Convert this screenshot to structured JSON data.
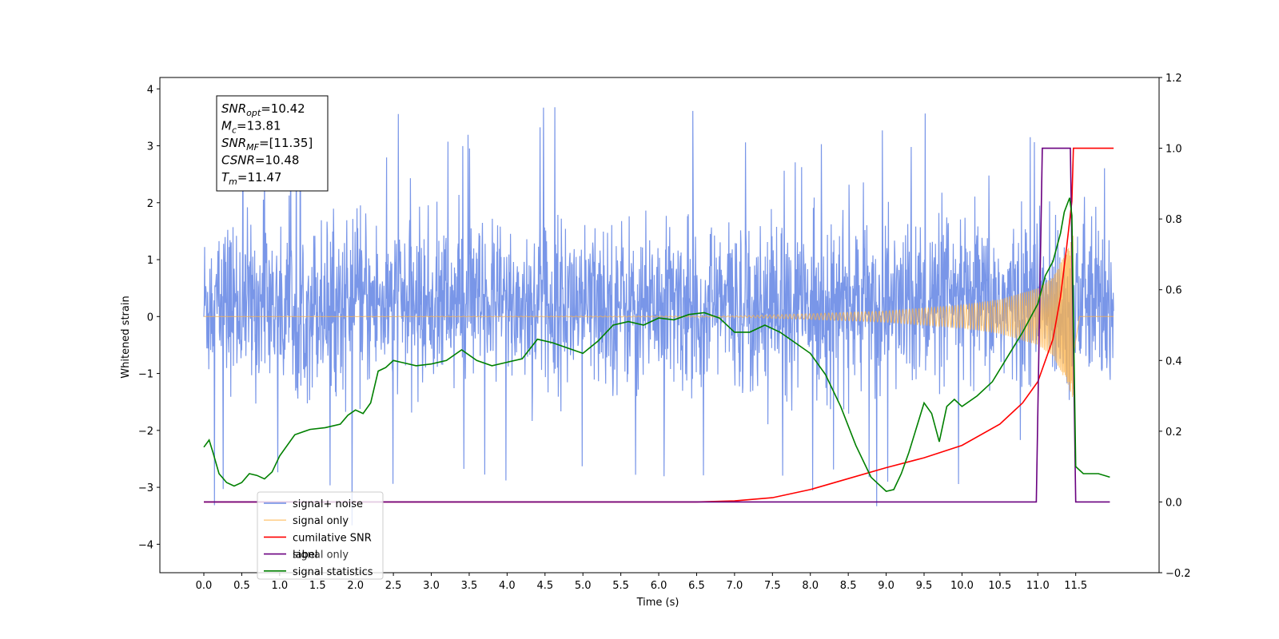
{
  "chart_data": {
    "type": "line",
    "xlabel": "Time (s)",
    "ylabel_left": "Whitened strain",
    "ylabel_right": "",
    "xlim": [
      -0.58,
      12.6
    ],
    "ylim_left": [
      -4.5,
      4.2
    ],
    "ylim_right": [
      -0.2,
      1.2
    ],
    "x_ticks": [
      0.0,
      0.5,
      1.0,
      1.5,
      2.0,
      2.5,
      3.0,
      3.5,
      4.0,
      4.5,
      5.0,
      5.5,
      6.0,
      6.5,
      7.0,
      7.5,
      8.0,
      8.5,
      9.0,
      9.5,
      10.0,
      10.5,
      11.0,
      11.5
    ],
    "x_tick_labels": [
      "0.0",
      "0.5",
      "1.0",
      "1.5",
      "2.0",
      "2.5",
      "3.0",
      "3.5",
      "4.0",
      "4.5",
      "5.0",
      "5.5",
      "6.0",
      "6.5",
      "7.0",
      "7.5",
      "8.0",
      "8.5",
      "9.0",
      "9.5",
      "10.0",
      "10.5",
      "11.0",
      "11.5"
    ],
    "y_left_ticks": [
      -4,
      -3,
      -2,
      -1,
      0,
      1,
      2,
      3,
      4
    ],
    "y_left_tick_labels": [
      "−4",
      "−3",
      "−2",
      "−1",
      "0",
      "1",
      "2",
      "3",
      "4"
    ],
    "y_right_ticks": [
      -0.2,
      0.0,
      0.2,
      0.4,
      0.6,
      0.8,
      1.0,
      1.2
    ],
    "y_right_tick_labels": [
      "−0.2",
      "0.0",
      "0.2",
      "0.4",
      "0.6",
      "0.8",
      "1.0",
      "1.2"
    ],
    "annotation": {
      "lines": [
        {
          "base": "SNR",
          "sub": "opt",
          "value": "=10.42"
        },
        {
          "base": "M",
          "sub": "c",
          "value": "=13.81"
        },
        {
          "base": "SNR",
          "sub": "MF",
          "value": "=[11.35]"
        },
        {
          "base": "CSNR",
          "sub": "",
          "value": "=10.48"
        },
        {
          "base": "T",
          "sub": "m",
          "value": "=11.47"
        }
      ]
    },
    "legend": {
      "location": "lower-left",
      "hidden_label": "signal only"
    },
    "series": [
      {
        "name": "signal+ noise",
        "axis": "left",
        "color": "#6a8be6",
        "x_range": [
          0.0,
          12.0
        ],
        "description_values": {
          "typical_band": [
            -2.0,
            2.3
          ],
          "max": 3.8,
          "min": -4.1
        }
      },
      {
        "name": "signal only",
        "axis": "left",
        "color": "#ffb347",
        "x_range": [
          0.0,
          12.0
        ],
        "envelope": {
          "x": [
            0.0,
            7.0,
            8.0,
            9.0,
            10.0,
            10.5,
            11.0,
            11.2,
            11.4,
            11.47,
            11.55,
            12.0
          ],
          "amplitude": [
            0.0,
            0.01,
            0.05,
            0.1,
            0.2,
            0.3,
            0.5,
            0.7,
            1.2,
            1.5,
            0.0,
            0.0
          ]
        }
      },
      {
        "name": "cumilative SNR",
        "axis": "right",
        "color": "#ff0000",
        "x": [
          0.0,
          6.5,
          7.0,
          7.5,
          8.0,
          8.5,
          9.0,
          9.5,
          10.0,
          10.5,
          10.8,
          11.0,
          11.2,
          11.3,
          11.38,
          11.45,
          11.47,
          11.5,
          12.0
        ],
        "y": [
          0.0,
          0.0,
          0.003,
          0.012,
          0.035,
          0.066,
          0.097,
          0.125,
          0.16,
          0.22,
          0.28,
          0.34,
          0.46,
          0.58,
          0.72,
          0.85,
          1.0,
          1.0,
          1.0
        ]
      },
      {
        "name": "label",
        "axis": "right",
        "color": "#6a0080",
        "x": [
          0.0,
          10.98,
          11.06,
          11.43,
          11.5,
          11.95
        ],
        "y": [
          0.0,
          0.0,
          1.0,
          1.0,
          0.0,
          0.0
        ]
      },
      {
        "name": "signal statistics",
        "axis": "right",
        "color": "#008000",
        "x": [
          0.0,
          0.07,
          0.12,
          0.2,
          0.3,
          0.4,
          0.5,
          0.6,
          0.7,
          0.8,
          0.9,
          1.0,
          1.2,
          1.4,
          1.6,
          1.8,
          1.9,
          2.0,
          2.1,
          2.2,
          2.3,
          2.4,
          2.5,
          2.6,
          2.8,
          3.0,
          3.2,
          3.4,
          3.6,
          3.8,
          4.0,
          4.2,
          4.4,
          4.6,
          4.8,
          5.0,
          5.2,
          5.4,
          5.6,
          5.8,
          6.0,
          6.2,
          6.4,
          6.6,
          6.8,
          7.0,
          7.2,
          7.4,
          7.6,
          7.8,
          8.0,
          8.2,
          8.4,
          8.6,
          8.8,
          9.0,
          9.1,
          9.2,
          9.3,
          9.4,
          9.5,
          9.6,
          9.7,
          9.8,
          9.9,
          10.0,
          10.2,
          10.4,
          10.6,
          10.8,
          11.0,
          11.1,
          11.2,
          11.3,
          11.35,
          11.42,
          11.45,
          11.5,
          11.6,
          11.8,
          11.95
        ],
        "y": [
          0.155,
          0.175,
          0.14,
          0.08,
          0.055,
          0.045,
          0.055,
          0.08,
          0.075,
          0.065,
          0.085,
          0.13,
          0.19,
          0.205,
          0.21,
          0.22,
          0.245,
          0.26,
          0.25,
          0.28,
          0.37,
          0.38,
          0.4,
          0.395,
          0.385,
          0.39,
          0.4,
          0.43,
          0.4,
          0.385,
          0.395,
          0.405,
          0.46,
          0.45,
          0.435,
          0.42,
          0.455,
          0.5,
          0.51,
          0.5,
          0.52,
          0.515,
          0.53,
          0.535,
          0.52,
          0.48,
          0.48,
          0.5,
          0.48,
          0.45,
          0.42,
          0.36,
          0.27,
          0.16,
          0.07,
          0.03,
          0.035,
          0.08,
          0.14,
          0.21,
          0.28,
          0.25,
          0.17,
          0.27,
          0.29,
          0.27,
          0.3,
          0.34,
          0.41,
          0.48,
          0.56,
          0.64,
          0.68,
          0.76,
          0.82,
          0.86,
          0.81,
          0.1,
          0.08,
          0.08,
          0.07
        ]
      }
    ]
  }
}
